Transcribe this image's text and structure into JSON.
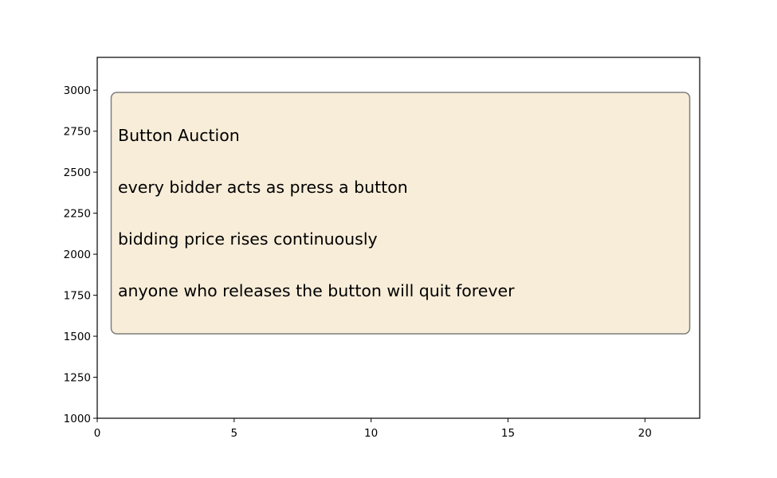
{
  "chart_data": {
    "type": "scatter",
    "title": "",
    "xlabel": "",
    "ylabel": "",
    "xlim": [
      0,
      22
    ],
    "ylim": [
      1000,
      3200
    ],
    "x_ticks": [
      0,
      5,
      10,
      15,
      20
    ],
    "y_ticks": [
      1000,
      1250,
      1500,
      1750,
      2000,
      2250,
      2500,
      2750,
      3000
    ],
    "grid": false,
    "series": [],
    "annotation": {
      "lines": [
        "Button Auction",
        "every bidder acts as press a button",
        "bidding price rises continuously",
        "anyone who releases the button will quit forever"
      ],
      "box_color": "#f8edd9",
      "border_color": "#7f7f7f"
    }
  }
}
